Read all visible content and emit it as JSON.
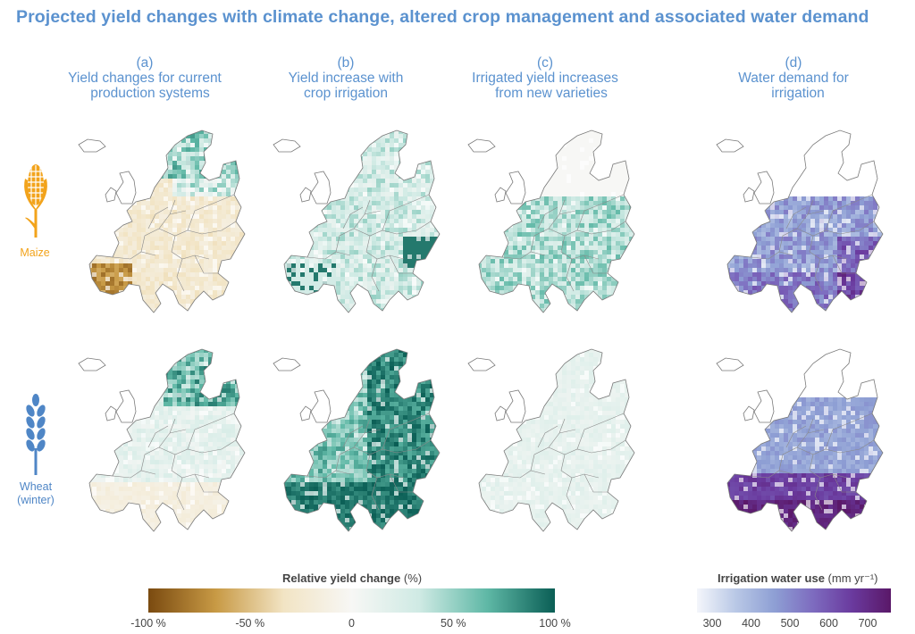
{
  "title": "Projected yield changes with climate change, altered crop management and associated water demand",
  "columns": [
    {
      "letter": "(a)",
      "line1": "Yield changes for current",
      "line2": "production systems"
    },
    {
      "letter": "(b)",
      "line1": "Yield increase with",
      "line2": "crop irrigation"
    },
    {
      "letter": "(c)",
      "line1": "Irrigated yield increases",
      "line2": "from new varieties"
    },
    {
      "letter": "(d)",
      "line1": "Water demand for",
      "line2": "irrigation"
    }
  ],
  "rows": [
    {
      "crop": "Maize",
      "crop_line2": "",
      "icon": "maize-icon",
      "color": "#f2a31b"
    },
    {
      "crop": "Wheat",
      "crop_line2": "(winter)",
      "icon": "wheat-icon",
      "color": "#4f86c6"
    }
  ],
  "maps": [
    {
      "panel": "a",
      "crop": "Maize",
      "scale": "yield",
      "dominant": "yield decrease in south, mixed in north"
    },
    {
      "panel": "b",
      "crop": "Maize",
      "scale": "yield",
      "dominant": "moderate increase, strong in south-east"
    },
    {
      "panel": "c",
      "crop": "Maize",
      "scale": "yield",
      "dominant": "moderate increase central Europe"
    },
    {
      "panel": "d",
      "crop": "Maize",
      "scale": "water",
      "dominant": "400-600 mm, higher south-east"
    },
    {
      "panel": "a",
      "crop": "Wheat",
      "scale": "yield",
      "dominant": "slight change, increase in north"
    },
    {
      "panel": "b",
      "crop": "Wheat",
      "scale": "yield",
      "dominant": "strong increase widespread"
    },
    {
      "panel": "c",
      "crop": "Wheat",
      "scale": "yield",
      "dominant": "slight increase"
    },
    {
      "panel": "d",
      "crop": "Wheat",
      "scale": "water",
      "dominant": "400-700 mm, highest in south"
    }
  ],
  "legend_yield": {
    "title": "Relative yield change",
    "unit": "(%)",
    "ticks": [
      "-100 %",
      "-50 %",
      "0",
      "50 %",
      "100 %"
    ],
    "colors": [
      "#7a4a10",
      "#c89a45",
      "#f2e4c4",
      "#f7f7f5",
      "#cfeae4",
      "#5fb8a6",
      "#0a5e55"
    ]
  },
  "legend_water": {
    "title": "Irrigation water use",
    "unit": "(mm yr⁻¹)",
    "ticks": [
      "300",
      "400",
      "500",
      "600",
      "700"
    ],
    "colors": [
      "#f4f6fb",
      "#b9c8e6",
      "#8e9fd4",
      "#7d6bbf",
      "#6a3a9e",
      "#5a1868"
    ]
  }
}
